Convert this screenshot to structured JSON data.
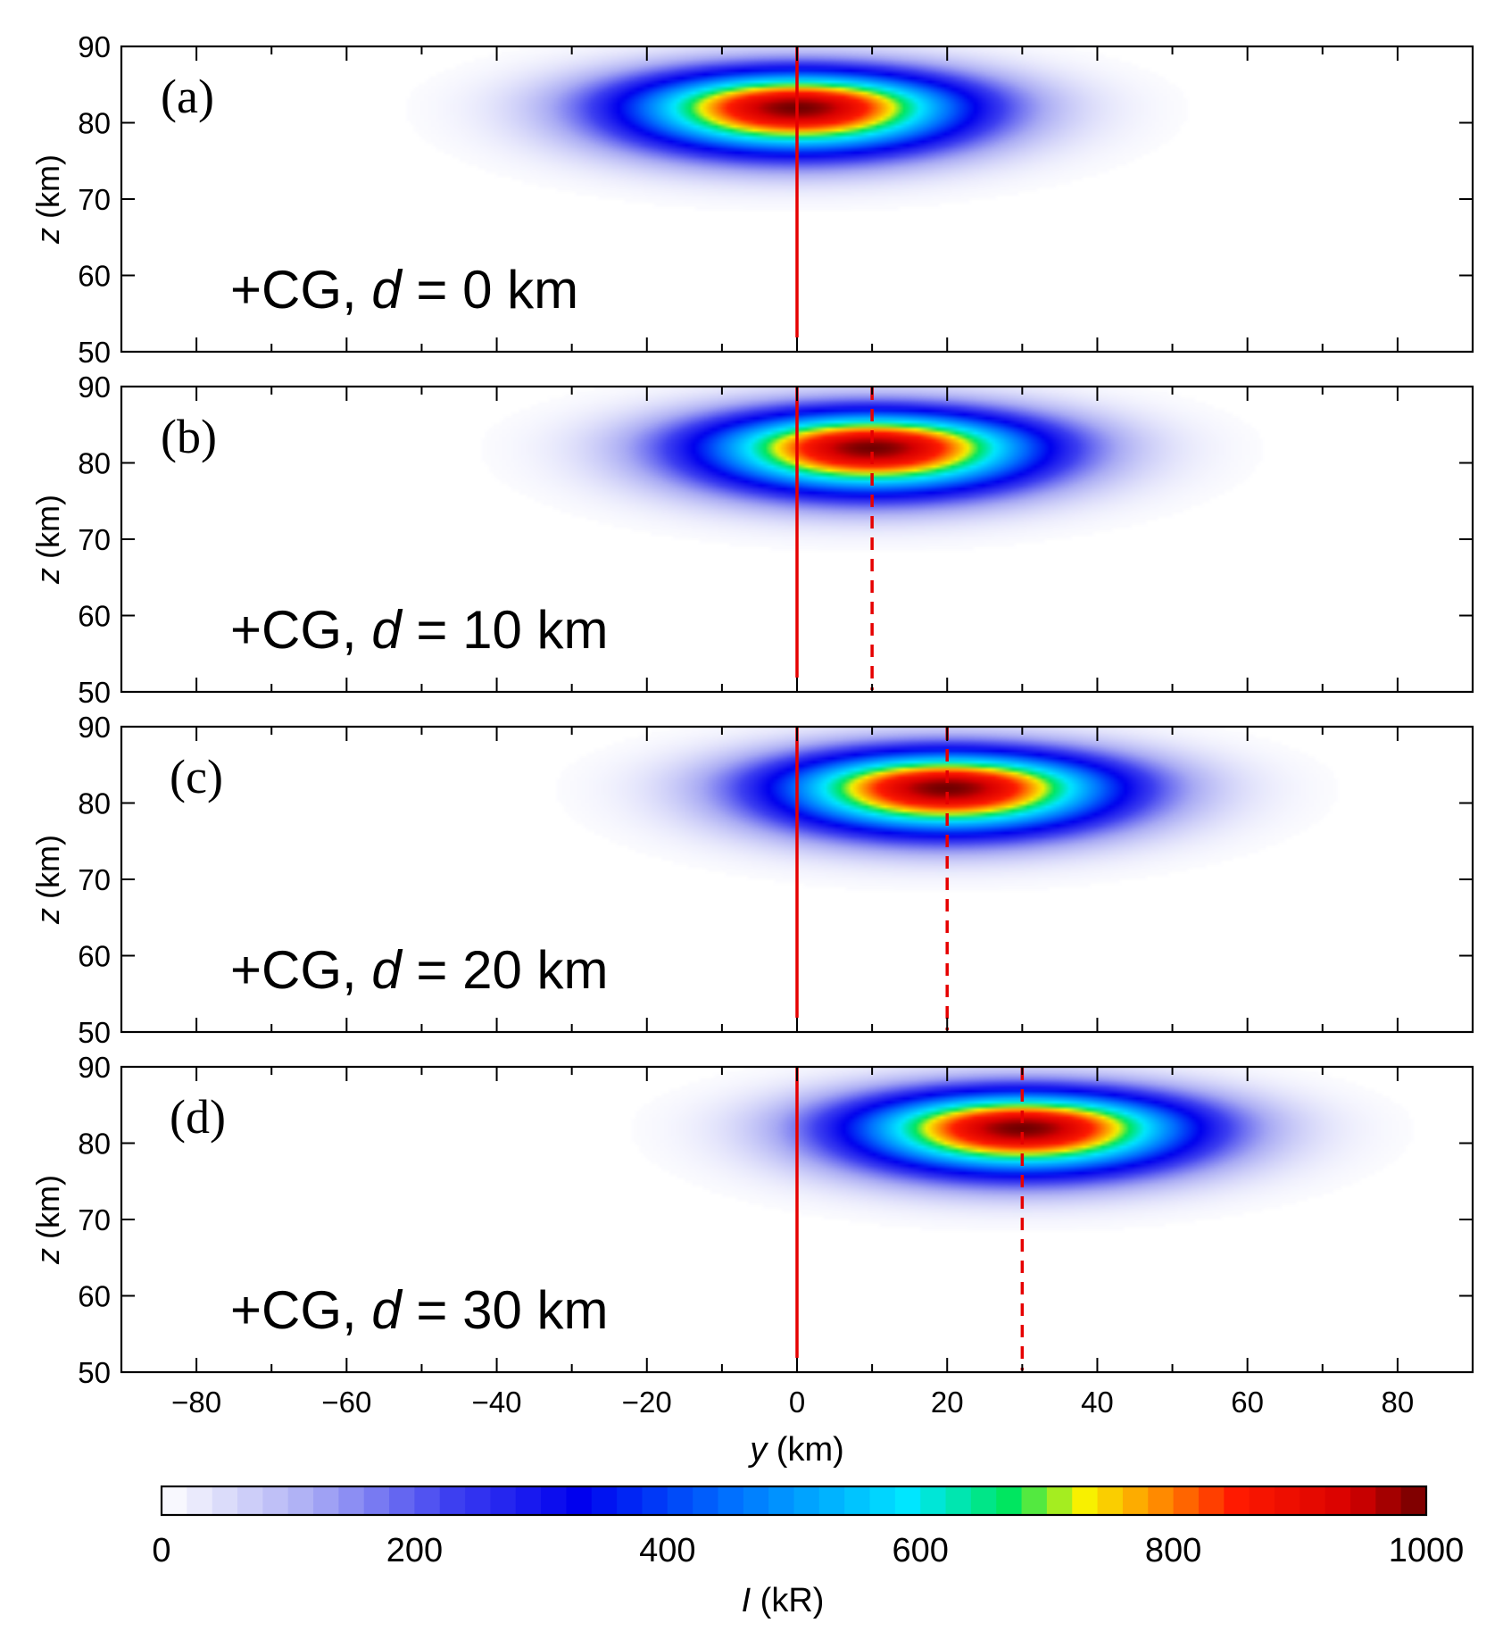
{
  "chart_data": {
    "type": "heatmap",
    "x_axis": {
      "label_var": "y",
      "label_unit": " (km)",
      "range": [
        -90,
        90
      ],
      "major_ticks": [
        -80,
        -60,
        -40,
        -20,
        0,
        20,
        40,
        60,
        80
      ],
      "tick_labels": [
        "−80",
        "−60",
        "−40",
        "−20",
        "0",
        "20",
        "40",
        "60",
        "80"
      ],
      "minor_ticks": [
        -90,
        -70,
        -50,
        -30,
        -10,
        10,
        30,
        50,
        70,
        90
      ]
    },
    "y_axis": {
      "label_var": "z",
      "label_unit": " (km)",
      "range": [
        50,
        90
      ],
      "ticks": [
        50,
        60,
        70,
        80,
        90
      ],
      "tick_labels": [
        "50",
        "60",
        "70",
        "80",
        "90"
      ]
    },
    "panels": [
      {
        "tag": "(a)",
        "text_prefix": "+CG, ",
        "text_var": "d",
        "text_suffix": " = 0 km",
        "d": 0,
        "peak_y": 0,
        "peak_z": 82,
        "peak_intensity": 1000,
        "solid_line_y": 0,
        "dashed_line_y": null
      },
      {
        "tag": "(b)",
        "text_prefix": "+CG, ",
        "text_var": "d",
        "text_suffix": " = 10 km",
        "d": 10,
        "peak_y": 10,
        "peak_z": 82,
        "peak_intensity": 1000,
        "solid_line_y": 0,
        "dashed_line_y": 10
      },
      {
        "tag": "(c)",
        "text_prefix": "+CG, ",
        "text_var": "d",
        "text_suffix": " = 20 km",
        "d": 20,
        "peak_y": 20,
        "peak_z": 82,
        "peak_intensity": 1000,
        "solid_line_y": 0,
        "dashed_line_y": 20
      },
      {
        "tag": "(d)",
        "text_prefix": "+CG, ",
        "text_var": "d",
        "text_suffix": " = 30 km",
        "d": 30,
        "peak_y": 30,
        "peak_z": 82,
        "peak_intensity": 1000,
        "solid_line_y": 0,
        "dashed_line_y": 30
      }
    ],
    "colorbar": {
      "label_var": "I",
      "label_unit": " (kR)",
      "range": [
        0,
        1000
      ],
      "ticks": [
        0,
        200,
        400,
        600,
        800,
        1000
      ],
      "tick_labels": [
        "0",
        "200",
        "400",
        "600",
        "800",
        "1000"
      ],
      "colormap_stops": [
        {
          "v": 0,
          "c": "#ffffff"
        },
        {
          "v": 120,
          "c": "#a9abf4"
        },
        {
          "v": 230,
          "c": "#3d3ff0"
        },
        {
          "v": 330,
          "c": "#0000ee"
        },
        {
          "v": 450,
          "c": "#0070ff"
        },
        {
          "v": 590,
          "c": "#00e6ff"
        },
        {
          "v": 670,
          "c": "#00e660"
        },
        {
          "v": 730,
          "c": "#f8f000"
        },
        {
          "v": 790,
          "c": "#ff8a00"
        },
        {
          "v": 850,
          "c": "#ff1a00"
        },
        {
          "v": 940,
          "c": "#d80000"
        },
        {
          "v": 1000,
          "c": "#700000"
        }
      ]
    },
    "marker_line_color": "#e60000"
  }
}
